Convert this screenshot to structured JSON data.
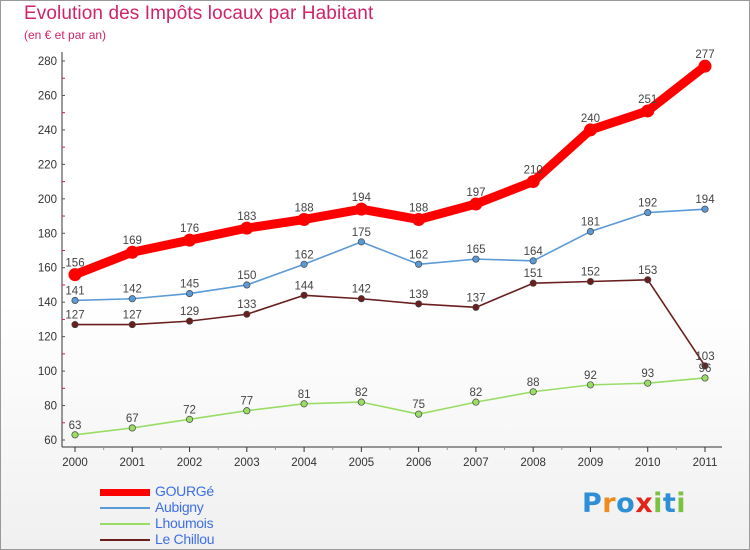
{
  "chart_data": {
    "type": "line",
    "title": "Evolution des Impôts locaux par Habitant",
    "subtitle": "(en € et par an)",
    "categories": [
      "2000",
      "2001",
      "2002",
      "2003",
      "2004",
      "2005",
      "2006",
      "2007",
      "2008",
      "2009",
      "2010",
      "2011"
    ],
    "yticks": [
      "60",
      "80",
      "100",
      "120",
      "140",
      "160",
      "180",
      "200",
      "220",
      "240",
      "260",
      "280"
    ],
    "ylim": [
      60,
      280
    ],
    "grid": false,
    "legend_position": "bottom-left",
    "series": [
      {
        "name": "Le Chillou",
        "color": "#6b1e1e",
        "values": [
          127,
          127,
          129,
          133,
          144,
          142,
          139,
          137,
          151,
          152,
          153,
          103
        ]
      },
      {
        "name": "Lhoumois",
        "color": "#99dd66",
        "values": [
          63,
          67,
          72,
          77,
          81,
          82,
          75,
          82,
          88,
          92,
          93,
          96
        ]
      },
      {
        "name": "Aubigny",
        "color": "#5a9ad6",
        "values": [
          141,
          142,
          145,
          150,
          162,
          175,
          162,
          165,
          164,
          181,
          192,
          194
        ]
      },
      {
        "name": "GOURGé",
        "color": "#ff0000",
        "values": [
          156,
          169,
          176,
          183,
          188,
          194,
          188,
          197,
          210,
          240,
          251,
          277
        ]
      }
    ],
    "legend": [
      "GOURGé",
      "Aubigny",
      "Lhoumois",
      "Le Chillou"
    ]
  },
  "logo": {
    "letters": [
      "P",
      "r",
      "o",
      "x",
      "i",
      "t",
      "i"
    ],
    "colors": [
      "#2f8fd6",
      "#f08a1c",
      "#2f8fd6",
      "#e2231a",
      "#7cc242",
      "#2f8fd6",
      "#7cc242"
    ]
  }
}
